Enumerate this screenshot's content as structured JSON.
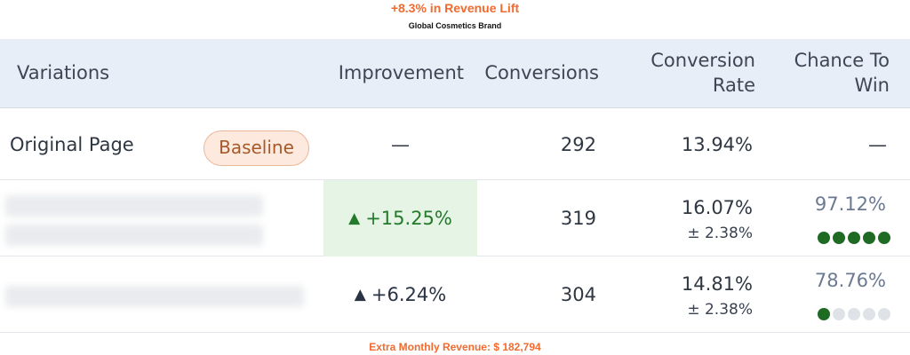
{
  "header": {
    "headline": "+8.3% in Revenue Lift",
    "subheadline": "Global Cosmetics Brand"
  },
  "table": {
    "columns": {
      "variations": "Variations",
      "improvement": "Improvement",
      "conversions": "Conversions",
      "conversion_rate_line1": "Conversion",
      "conversion_rate_line2": "Rate",
      "chance_line1": "Chance To",
      "chance_line2": "Win"
    },
    "rows": [
      {
        "name": "Original Page",
        "badge": "Baseline",
        "improvement": "—",
        "conversions": "292",
        "rate": "13.94%",
        "chance": "—"
      },
      {
        "name_blurred": true,
        "improvement_arrow": "▲",
        "improvement": "+15.25%",
        "conversions": "319",
        "rate": "16.07%",
        "rate_margin": "± 2.38%",
        "chance": "97.12%",
        "chance_dots": [
          true,
          true,
          true,
          true,
          true
        ],
        "highlight_color": "#e6f4e6"
      },
      {
        "name_blurred": true,
        "improvement_arrow": "▲",
        "improvement": "+6.24%",
        "conversions": "304",
        "rate": "14.81%",
        "rate_margin": "± 2.38%",
        "chance": "78.76%",
        "chance_dots": [
          true,
          false,
          false,
          false,
          false
        ]
      }
    ]
  },
  "footer": {
    "text": "Extra Monthly Revenue: $ 182,794"
  },
  "colors": {
    "accent": "#f26a2e",
    "header_bg": "#e8eef8",
    "positive": "#237a2a",
    "dot_on": "#1f6b23",
    "dot_off": "#dfe3e8"
  }
}
